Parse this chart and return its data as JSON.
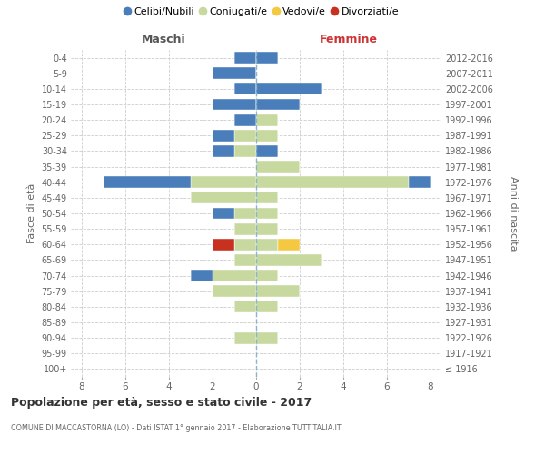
{
  "age_groups": [
    "100+",
    "95-99",
    "90-94",
    "85-89",
    "80-84",
    "75-79",
    "70-74",
    "65-69",
    "60-64",
    "55-59",
    "50-54",
    "45-49",
    "40-44",
    "35-39",
    "30-34",
    "25-29",
    "20-24",
    "15-19",
    "10-14",
    "5-9",
    "0-4"
  ],
  "birth_years": [
    "≤ 1916",
    "1917-1921",
    "1922-1926",
    "1927-1931",
    "1932-1936",
    "1937-1941",
    "1942-1946",
    "1947-1951",
    "1952-1956",
    "1957-1961",
    "1962-1966",
    "1967-1971",
    "1972-1976",
    "1977-1981",
    "1982-1986",
    "1987-1991",
    "1992-1996",
    "1997-2001",
    "2002-2006",
    "2007-2011",
    "2012-2016"
  ],
  "male_celibi": [
    0,
    0,
    0,
    0,
    0,
    0,
    1,
    0,
    0,
    0,
    1,
    0,
    4,
    0,
    1,
    1,
    1,
    2,
    1,
    2,
    1
  ],
  "male_coniugati": [
    0,
    0,
    1,
    0,
    1,
    2,
    2,
    1,
    1,
    1,
    1,
    3,
    3,
    0,
    1,
    1,
    0,
    0,
    0,
    0,
    0
  ],
  "male_divorziati": [
    0,
    0,
    0,
    0,
    0,
    0,
    0,
    0,
    1,
    0,
    0,
    0,
    0,
    0,
    0,
    0,
    0,
    0,
    0,
    0,
    0
  ],
  "female_celibi": [
    0,
    0,
    0,
    0,
    0,
    0,
    0,
    0,
    0,
    0,
    0,
    0,
    1,
    0,
    1,
    0,
    0,
    2,
    3,
    0,
    1
  ],
  "female_coniugati": [
    0,
    0,
    1,
    0,
    1,
    2,
    1,
    3,
    1,
    1,
    1,
    1,
    7,
    2,
    0,
    1,
    1,
    0,
    0,
    0,
    0
  ],
  "female_vedovi": [
    0,
    0,
    0,
    0,
    0,
    0,
    0,
    0,
    1,
    0,
    0,
    0,
    0,
    0,
    0,
    0,
    0,
    0,
    0,
    0,
    0
  ],
  "color_celibi": "#4a7eba",
  "color_coniugati": "#c8d9a0",
  "color_vedovi": "#f5c842",
  "color_divorziati": "#c83020",
  "title": "Popolazione per età, sesso e stato civile - 2017",
  "subtitle": "COMUNE DI MACCASTORNA (LO) - Dati ISTAT 1° gennaio 2017 - Elaborazione TUTTITALIA.IT",
  "label_maschi": "Maschi",
  "label_femmine": "Femmine",
  "ylabel_left": "Fasce di età",
  "ylabel_right": "Anni di nascita",
  "legend_labels": [
    "Celibi/Nubili",
    "Coniugati/e",
    "Vedovi/e",
    "Divorziati/e"
  ],
  "xlim": 8.5
}
